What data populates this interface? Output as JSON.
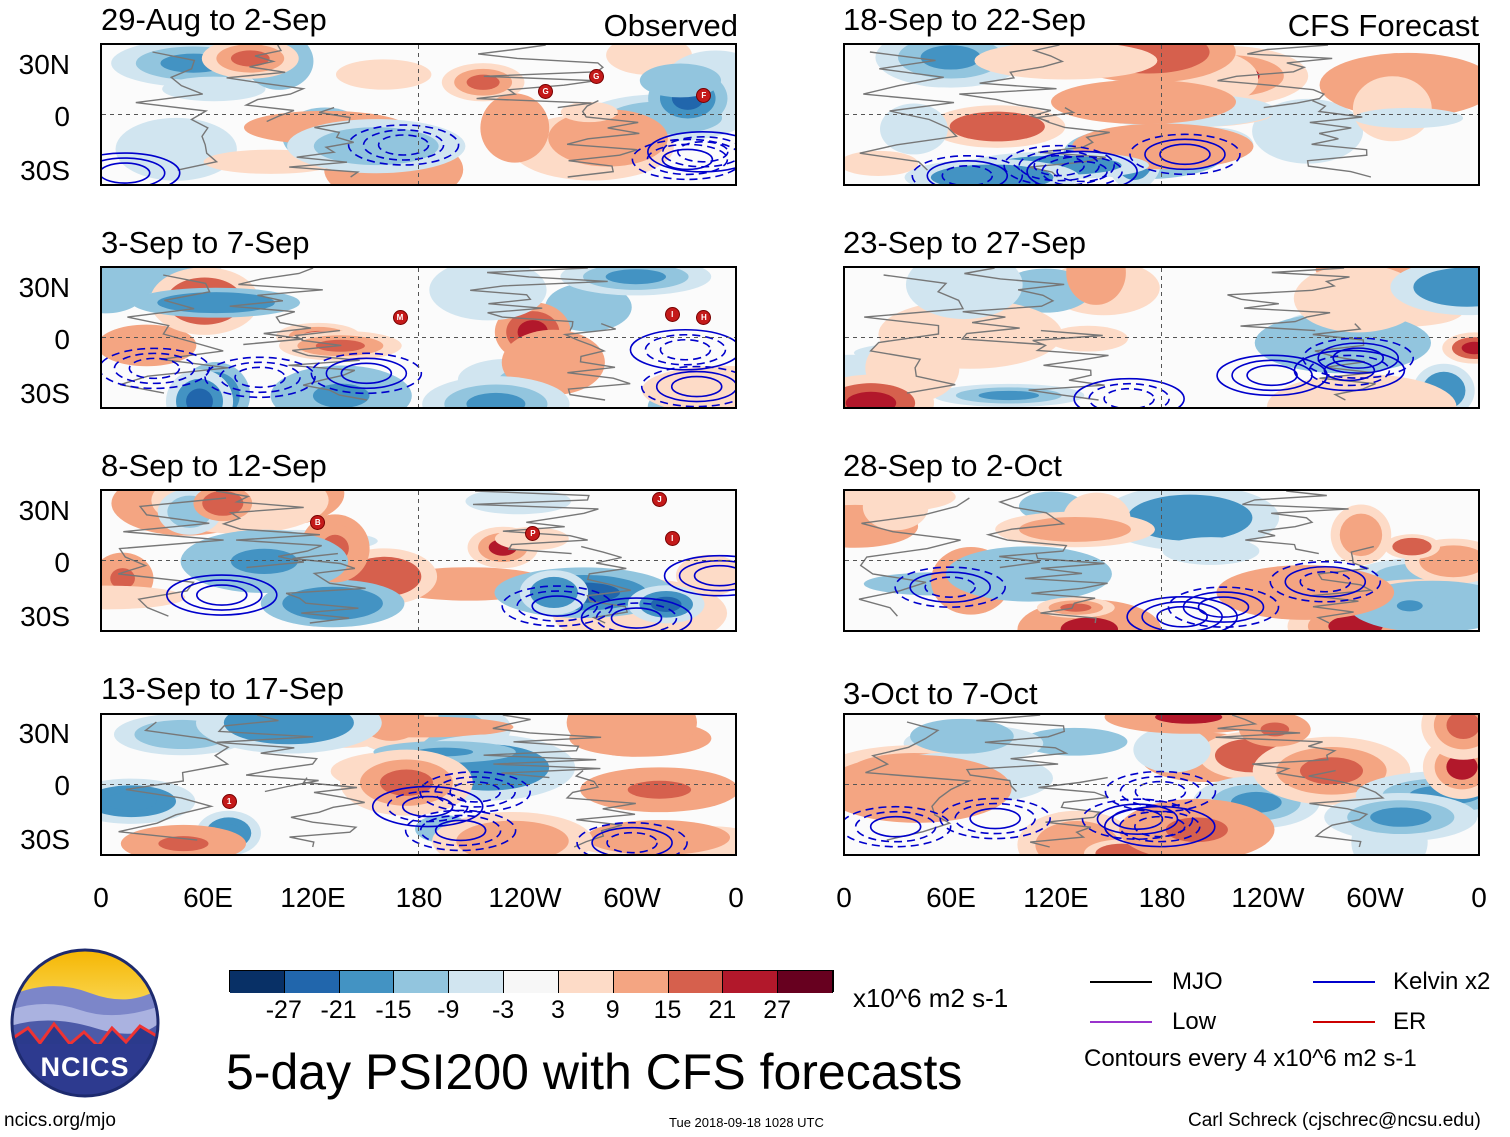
{
  "panels_left": [
    {
      "title": "29-Aug to 2-Sep",
      "tag": "Observed"
    },
    {
      "title": "3-Sep to 7-Sep",
      "tag": ""
    },
    {
      "title": "8-Sep to 12-Sep",
      "tag": ""
    },
    {
      "title": "13-Sep to 17-Sep",
      "tag": ""
    }
  ],
  "panels_right": [
    {
      "title": "18-Sep to 22-Sep",
      "tag": "CFS Forecast"
    },
    {
      "title": "23-Sep to 27-Sep",
      "tag": ""
    },
    {
      "title": "28-Sep to 2-Oct",
      "tag": ""
    },
    {
      "title": "3-Oct to 7-Oct",
      "tag": ""
    }
  ],
  "lat_labels": [
    "30N",
    "0",
    "30S"
  ],
  "lon_labels": [
    "0",
    "60E",
    "120E",
    "180",
    "120W",
    "60W",
    "0"
  ],
  "storm_markers": [
    {
      "panel": 0,
      "labels": [
        "G",
        "G",
        "F"
      ]
    },
    {
      "panel": 1,
      "labels": [
        "M",
        "I",
        "H"
      ]
    },
    {
      "panel": 2,
      "labels": [
        "B",
        "P",
        "J",
        "I"
      ]
    },
    {
      "panel": 3,
      "labels": [
        "1"
      ]
    }
  ],
  "colorbar": {
    "ticks": [
      "-27",
      "-21",
      "-15",
      "-9",
      "-3",
      "3",
      "9",
      "15",
      "21",
      "27"
    ],
    "colors": [
      "#083066",
      "#2166ac",
      "#4393c3",
      "#92c5de",
      "#d1e5f0",
      "#f7f7f7",
      "#fddbc7",
      "#f4a582",
      "#d6604d",
      "#b2182b",
      "#67001f"
    ],
    "units": "x10^6 m2 s-1"
  },
  "legend": {
    "mjo": {
      "label": "MJO",
      "color": "#000000"
    },
    "kelvin": {
      "label": "Kelvin x2",
      "color": "#0000cc"
    },
    "low": {
      "label": "Low",
      "color": "#9933cc"
    },
    "er": {
      "label": "ER",
      "color": "#cc0000"
    },
    "note": "Contours every 4 x10^6 m2 s-1"
  },
  "logo_text": "NCICS",
  "main_title": "5-day PSI200 with CFS forecasts",
  "footer_url": "ncics.org/mjo",
  "footer_date": "Tue 2018-09-18 1028 UTC",
  "footer_credit": "Carl Schreck (cjschrec@ncsu.edu)"
}
